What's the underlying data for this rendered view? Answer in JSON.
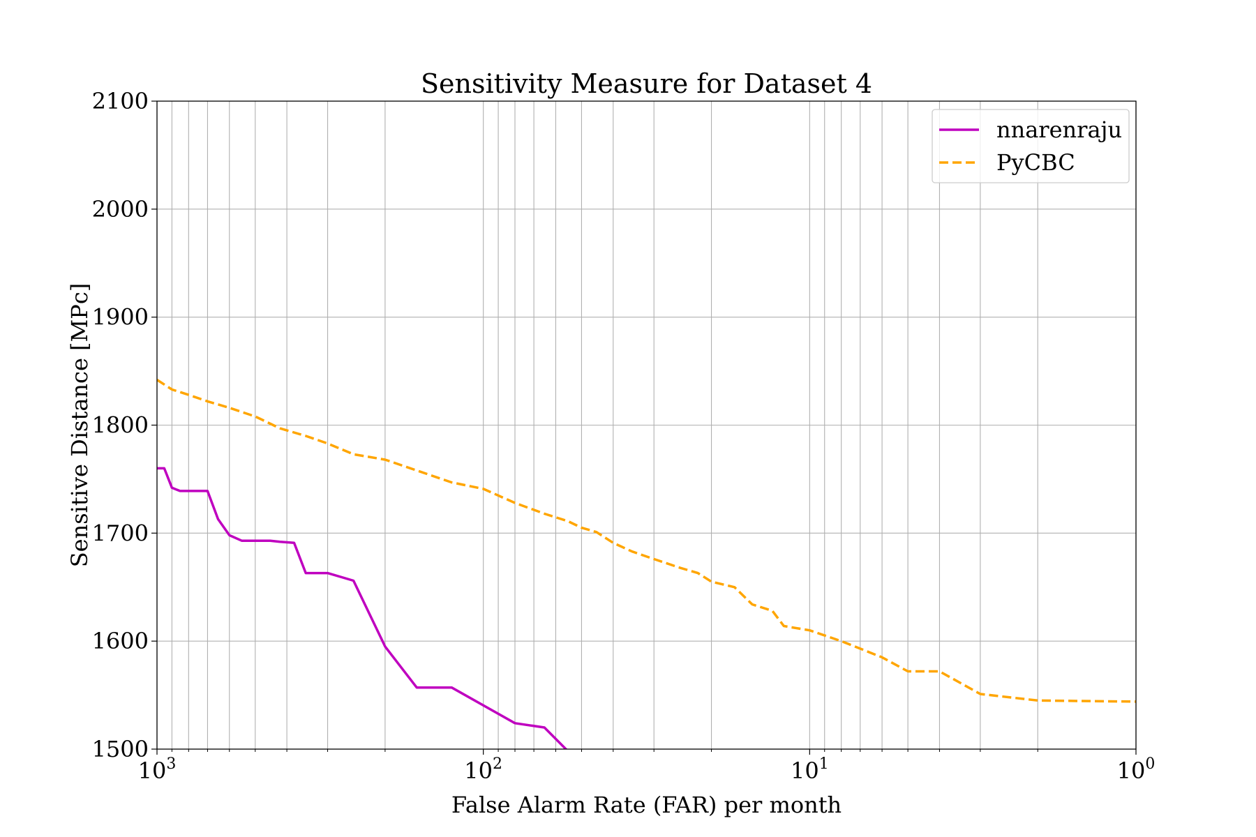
{
  "chart_data": {
    "type": "line",
    "title": "Sensitivity Measure for Dataset 4",
    "xlabel": "False Alarm Rate (FAR) per month",
    "ylabel": "Sensitive Distance [MPc]",
    "x_scale": "log",
    "x_reversed": true,
    "xlim": [
      1000,
      1
    ],
    "ylim": [
      1500,
      2100
    ],
    "y_ticks": [
      1500,
      1600,
      1700,
      1800,
      1900,
      2000,
      2100
    ],
    "x_ticks": [
      {
        "value": 1000,
        "base": "10",
        "exp": "3"
      },
      {
        "value": 100,
        "base": "10",
        "exp": "2"
      },
      {
        "value": 10,
        "base": "10",
        "exp": "1"
      },
      {
        "value": 1,
        "base": "10",
        "exp": "0"
      }
    ],
    "grid": true,
    "legend_position": "top-right",
    "series": [
      {
        "name": "nnarenraju",
        "color": "#bf00bf",
        "dash": "solid",
        "x": [
          1000,
          950,
          900,
          850,
          800,
          700,
          650,
          600,
          550,
          450,
          420,
          380,
          350,
          300,
          250,
          200,
          160,
          125,
          80,
          65,
          55
        ],
        "y": [
          1760,
          1760,
          1742,
          1739,
          1739,
          1739,
          1713,
          1698,
          1693,
          1693,
          1692,
          1691,
          1663,
          1663,
          1656,
          1595,
          1557,
          1557,
          1524,
          1520,
          1498
        ]
      },
      {
        "name": "PyCBC",
        "color": "#ffa500",
        "dash": "dashed",
        "x": [
          1000,
          900,
          800,
          700,
          600,
          500,
          420,
          350,
          300,
          250,
          200,
          160,
          125,
          100,
          80,
          65,
          55,
          50,
          45,
          40,
          35,
          30,
          25,
          22,
          20,
          17,
          15,
          13,
          12,
          10,
          8,
          6,
          5,
          4,
          3,
          2,
          1
        ],
        "y": [
          1842,
          1833,
          1828,
          1822,
          1816,
          1808,
          1797,
          1790,
          1783,
          1773,
          1768,
          1758,
          1747,
          1741,
          1728,
          1718,
          1711,
          1705,
          1701,
          1691,
          1683,
          1676,
          1668,
          1663,
          1655,
          1650,
          1634,
          1628,
          1614,
          1610,
          1600,
          1585,
          1572,
          1572,
          1551,
          1545,
          1544
        ]
      }
    ]
  }
}
